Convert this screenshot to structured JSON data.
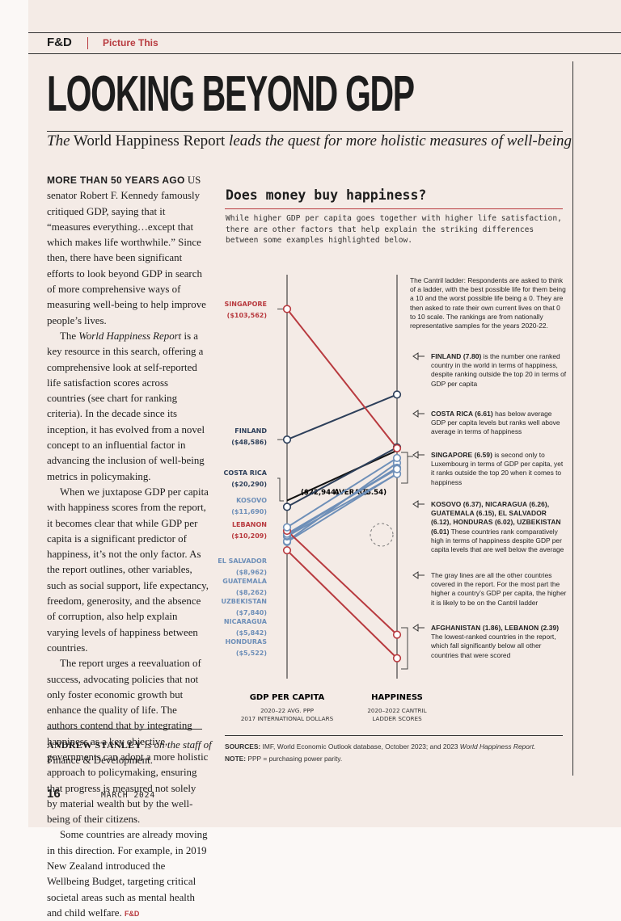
{
  "header": {
    "brand": "F&D",
    "section": "Picture This"
  },
  "title": "LOOKING BEYOND GDP",
  "subtitle": [
    "The",
    " World Happiness Report ",
    "leads the quest for more holistic measures of well-being"
  ],
  "article": {
    "lead": "MORE THAN 50 YEARS AGO",
    "paragraphs": [
      [
        " US senator Robert F. Kennedy famously critiqued GDP, saying that it “measures everything…except that which makes life worthwhile.” Since then, there have been significant efforts to look beyond GDP in search of more comprehensive ways of measuring well-being to help improve people’s lives."
      ],
      [
        "The ",
        "World Happiness Report",
        " is a key resource in this search, offering a comprehensive look at self-reported life satisfaction scores across countries (see chart for ranking criteria). In the decade since its inception, it has evolved from a novel concept to an influential factor in advancing the inclusion of well-being metrics in policymaking."
      ],
      [
        "When we juxtapose GDP per capita with happiness scores from the report, it becomes clear that while GDP per capita is a significant predictor of happiness, it’s not the only factor. As the report outlines, other variables, such as social support, life expectancy, freedom, generosity, and the absence of corruption, also help explain varying levels of happiness between countries."
      ],
      [
        "The report urges a reevaluation of success, advocating policies that not only foster economic growth but enhance the quality of life. The authors contend that by integrating happiness as a key objective, governments can adopt a more holistic approach to policymaking, ensuring that progress is measured not solely by material wealth but by the well-being of their citizens."
      ],
      [
        "Some countries are already moving in this direction. For example, in 2019 New Zealand introduced the Wellbeing Budget, targeting critical societal areas such as mental health and child welfare."
      ]
    ],
    "end_mark": "F&D"
  },
  "byline": [
    "ANDREW STANLEY",
    " is on the staff of ",
    "Finance & Development."
  ],
  "chart_data": {
    "type": "slope",
    "title": "Does money buy happiness?",
    "subtitle": "While higher GDP per capita goes together with higher life satisfaction, there are other factors that help explain the striking differences between some examples highlighted below.",
    "axis_titles": [
      "GDP PER CAPITA",
      "HAPPINESS"
    ],
    "axis_notes": [
      [
        "2020–22 AVG. PPP",
        "2017 INTERNATIONAL DOLLARS"
      ],
      [
        "2020–2022 CANTRIL",
        "LADDER SCORES"
      ]
    ],
    "ylim": [
      -52000,
      118000
    ],
    "y2lim": [
      1.4,
      10.5
    ],
    "categories": [
      "SINGAPORE",
      "FINLAND",
      "COSTA RICA",
      "KOSOVO",
      "LEBANON",
      "EL SALVADOR",
      "GUATEMALA",
      "UZBEKISTAN",
      "NICARAGUA",
      "HONDURAS",
      null
    ],
    "gdp": [
      103562,
      48586,
      20290,
      11690,
      10209,
      8962,
      8262,
      7840,
      5842,
      5522,
      2000
    ],
    "value_labels": [
      "($103,562)",
      "($48,586)",
      "($20,290)",
      "($11,690)",
      "($10,209)",
      "($8,962)",
      "($8,262)",
      "($7,840)",
      "($5,842)",
      "($5,522)",
      null
    ],
    "happiness": [
      6.59,
      7.8,
      6.61,
      6.37,
      2.39,
      6.12,
      6.15,
      6.01,
      6.26,
      6.02,
      1.86
    ],
    "colors": [
      "#b83a3f",
      "#2d3f5a",
      "#2d3f5a",
      "#6e8fb8",
      "#b83a3f",
      "#6e8fb8",
      "#6e8fb8",
      "#6e8fb8",
      "#6e8fb8",
      "#6e8fb8",
      "#b83a3f"
    ],
    "average": {
      "label": "AVERAGE",
      "gdp": 22944,
      "happiness": 6.54,
      "gdp_label": "($22,944)",
      "happiness_label": "(6.54)"
    },
    "annotations": [
      {
        "text": "The Cantril ladder: Respondents are asked to think of a ladder, with the best possible life for them being a 10 and the worst possible life being a 0. They are then asked to rate their own current lives on that 0 to 10 scale. The rankings are from nationally representative samples for the years 2020-22."
      },
      {
        "lead": "FINLAND (7.80)",
        "text": " is the number one ranked country in the world in terms of happiness, despite ranking outside the top 20 in terms of GDP per capita"
      },
      {
        "lead": "COSTA RICA (6.61)",
        "text": " has below average GDP per capita levels but ranks well above average in terms of happiness"
      },
      {
        "lead": "SINGAPORE (6.59)",
        "text": " is second only to Luxembourg in terms of GDP per capita, yet it ranks outside the top 20 when it comes to happiness"
      },
      {
        "lead": "KOSOVO (6.37), NICARAGUA (6.26), GUATEMALA (6.15), EL SALVADOR (6.12), HONDURAS (6.02), UZBEKISTAN (6.01)",
        "text": " These countries rank comparatively high in terms of happiness despite GDP per capita levels that are well below the average"
      },
      {
        "text": "The gray lines are all the other countries covered in the report. For the most part the higher a country’s GDP per capita, the higher it is likely to be on the Cantril ladder"
      },
      {
        "lead": "AFGHANISTAN (1.86), LEBANON (2.39)",
        "text": " The lowest-ranked countries in the report, which fall significantly below all other countries that were scored"
      }
    ]
  },
  "sources": {
    "label": "SOURCES:",
    "parts": [
      " IMF, World Economic Outlook database, October 2023; and 2023 ",
      "World Happiness Report."
    ]
  },
  "note": {
    "label": "NOTE:",
    "text": " PPP = purchasing power parity."
  },
  "footer": {
    "page": "16",
    "issue": "MARCH 2024"
  }
}
